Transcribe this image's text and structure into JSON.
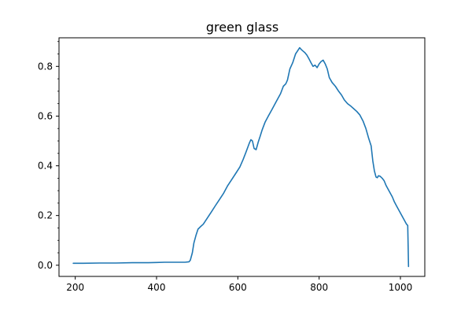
{
  "chart_data": {
    "type": "line",
    "title": "green glass",
    "xlabel": "",
    "ylabel": "",
    "xlim": [
      160,
      1060
    ],
    "ylim": [
      -0.045,
      0.915
    ],
    "xticks": [
      200,
      400,
      600,
      800,
      1000
    ],
    "xtick_labels": [
      "200",
      "400",
      "600",
      "800",
      "1000"
    ],
    "yticks": [
      0.0,
      0.2,
      0.4,
      0.6,
      0.8
    ],
    "ytick_labels": [
      "0.0",
      "0.2",
      "0.4",
      "0.6",
      "0.8"
    ],
    "y_minor_step": 0.05,
    "grid": false,
    "legend": "none",
    "colors": {
      "line": "#1f77b4"
    },
    "series": [
      {
        "x": [
          195,
          220,
          260,
          300,
          340,
          380,
          400,
          420,
          450,
          470,
          480,
          483,
          488,
          492,
          497,
          502,
          508,
          515,
          525,
          535,
          545,
          555,
          565,
          575,
          585,
          595,
          605,
          613,
          620,
          628,
          632,
          636,
          640,
          645,
          650,
          655,
          660,
          667,
          675,
          685,
          695,
          705,
          712,
          718,
          722,
          728,
          735,
          742,
          748,
          752,
          756,
          760,
          765,
          770,
          775,
          780,
          785,
          790,
          795,
          800,
          805,
          810,
          815,
          820,
          825,
          832,
          840,
          848,
          855,
          862,
          870,
          878,
          885,
          893,
          900,
          908,
          915,
          922,
          928,
          932,
          936,
          940,
          943,
          946,
          950,
          955,
          960,
          965,
          970,
          975,
          980,
          985,
          990,
          995,
          1000,
          1005,
          1010,
          1015,
          1018,
          1019,
          1020
        ],
        "y": [
          0.008,
          0.008,
          0.009,
          0.009,
          0.01,
          0.01,
          0.011,
          0.012,
          0.012,
          0.012,
          0.014,
          0.02,
          0.05,
          0.09,
          0.12,
          0.145,
          0.155,
          0.165,
          0.19,
          0.215,
          0.24,
          0.265,
          0.29,
          0.32,
          0.345,
          0.37,
          0.395,
          0.425,
          0.455,
          0.49,
          0.505,
          0.5,
          0.47,
          0.465,
          0.495,
          0.52,
          0.545,
          0.575,
          0.6,
          0.63,
          0.66,
          0.69,
          0.72,
          0.73,
          0.745,
          0.79,
          0.815,
          0.85,
          0.865,
          0.875,
          0.868,
          0.862,
          0.855,
          0.845,
          0.83,
          0.815,
          0.8,
          0.805,
          0.795,
          0.81,
          0.82,
          0.825,
          0.81,
          0.79,
          0.755,
          0.735,
          0.72,
          0.7,
          0.685,
          0.665,
          0.65,
          0.64,
          0.63,
          0.618,
          0.605,
          0.58,
          0.55,
          0.51,
          0.48,
          0.42,
          0.38,
          0.355,
          0.352,
          0.36,
          0.358,
          0.35,
          0.34,
          0.32,
          0.305,
          0.29,
          0.275,
          0.255,
          0.24,
          0.225,
          0.21,
          0.195,
          0.18,
          0.165,
          0.16,
          0.08,
          -0.005
        ]
      }
    ]
  }
}
